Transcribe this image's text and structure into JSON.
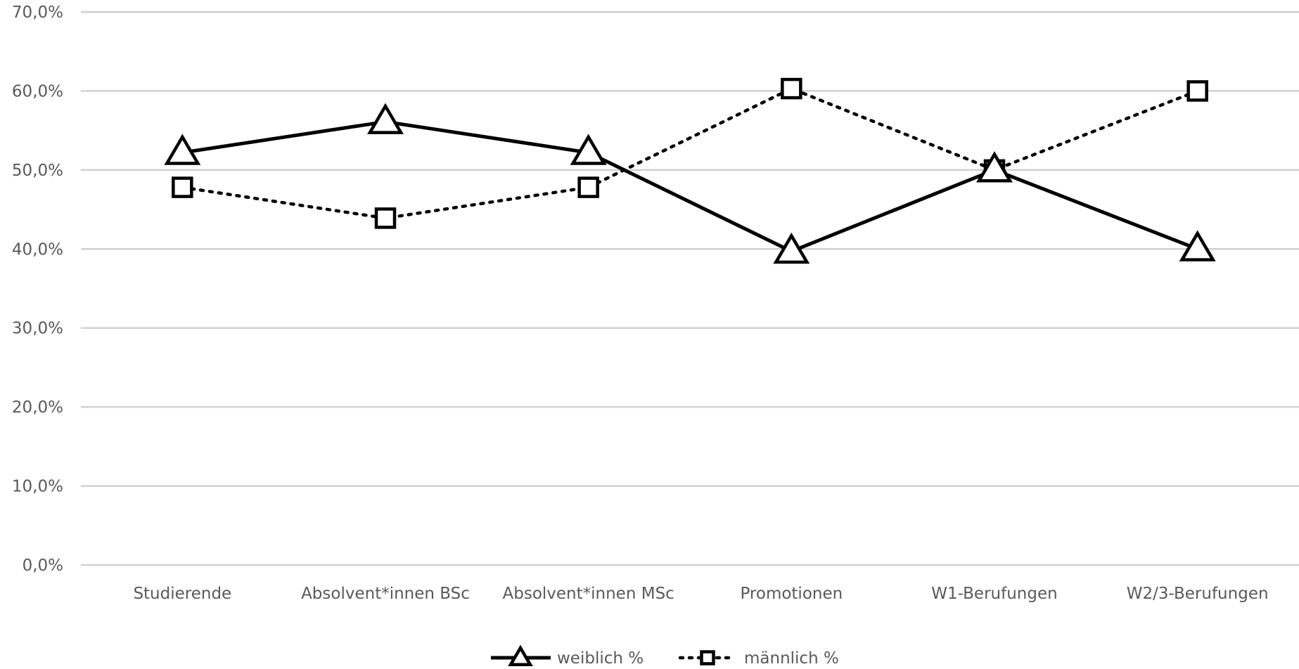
{
  "chart_data": {
    "type": "line",
    "title": "",
    "xlabel": "",
    "ylabel": "",
    "ylim": [
      0,
      70
    ],
    "y_ticks": [
      "0,0%",
      "10,0%",
      "20,0%",
      "30,0%",
      "40,0%",
      "50,0%",
      "60,0%",
      "70,0%"
    ],
    "y_tick_values": [
      0,
      10,
      20,
      30,
      40,
      50,
      60,
      70
    ],
    "grid": true,
    "legend_position": "bottom",
    "categories": [
      "Studierende",
      "Absolvent*innen BSc",
      "Absolvent*innen MSc",
      "Promotionen",
      "W1-Berufungen",
      "W2/3-Berufungen"
    ],
    "series": [
      {
        "name": "weiblich %",
        "values": [
          52.2,
          56.1,
          52.2,
          39.7,
          50.0,
          40.0
        ],
        "line": "solid",
        "marker": "triangle",
        "color": "#000000"
      },
      {
        "name": "männlich %",
        "values": [
          47.8,
          43.9,
          47.8,
          60.3,
          50.0,
          60.0
        ],
        "line": "dotted",
        "marker": "square",
        "color": "#000000"
      }
    ]
  }
}
